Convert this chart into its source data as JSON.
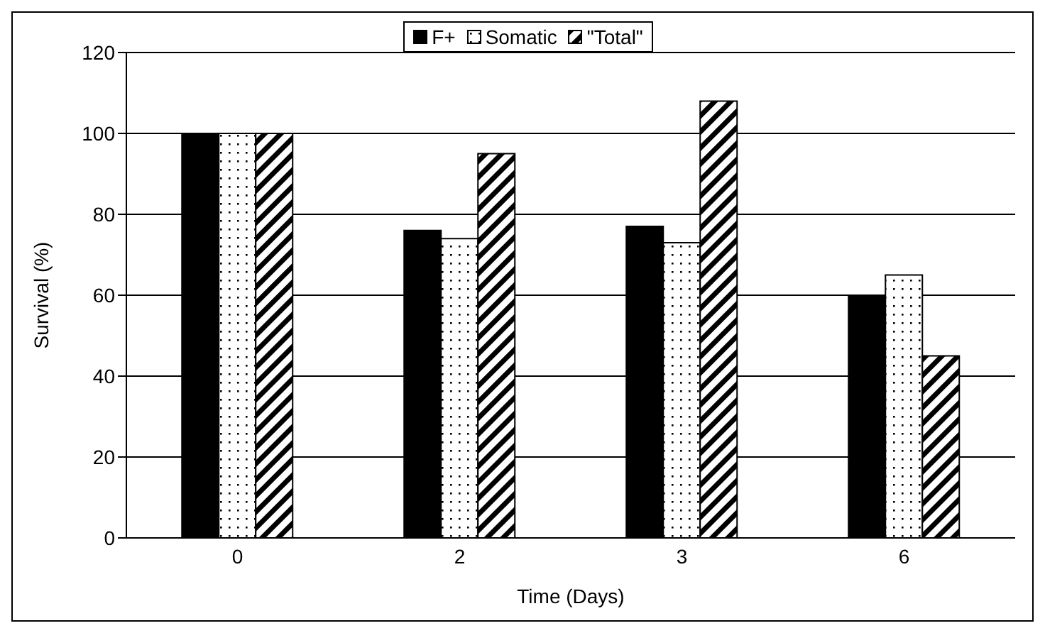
{
  "chart_data": {
    "type": "bar",
    "xlabel": "Time (Days)",
    "ylabel": "Survival (%)",
    "categories": [
      "0",
      "2",
      "3",
      "6"
    ],
    "series": [
      {
        "name": "F+",
        "color": "#000000",
        "values": [
          100,
          76,
          77,
          60
        ]
      },
      {
        "name": "Somatic",
        "color": "#000000",
        "values": [
          100,
          74,
          73,
          65
        ]
      },
      {
        "name": "\"Total\"",
        "color": "#000000",
        "values": [
          100,
          95,
          108,
          45
        ]
      }
    ],
    "ylim": [
      0,
      120
    ],
    "yticks": [
      0,
      20,
      40,
      60,
      80,
      100,
      120
    ],
    "grid": "y",
    "legend": "top"
  }
}
